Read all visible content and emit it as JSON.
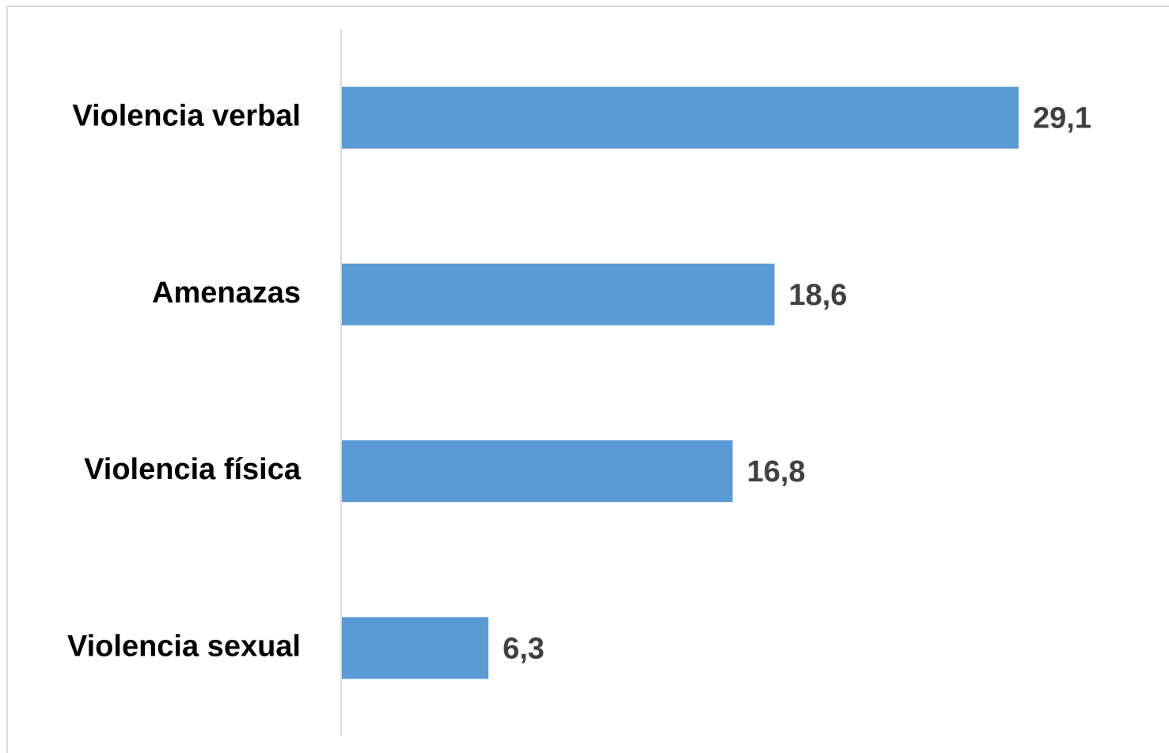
{
  "chart_data": {
    "type": "barh",
    "categories": [
      "Violencia verbal",
      "Amenazas",
      "Violencia física",
      "Violencia sexual"
    ],
    "values": [
      29.1,
      18.6,
      16.8,
      6.3
    ],
    "value_labels": [
      "29,1",
      "18,6",
      "16,8",
      "6,3"
    ],
    "color": "#5b9bd5"
  }
}
